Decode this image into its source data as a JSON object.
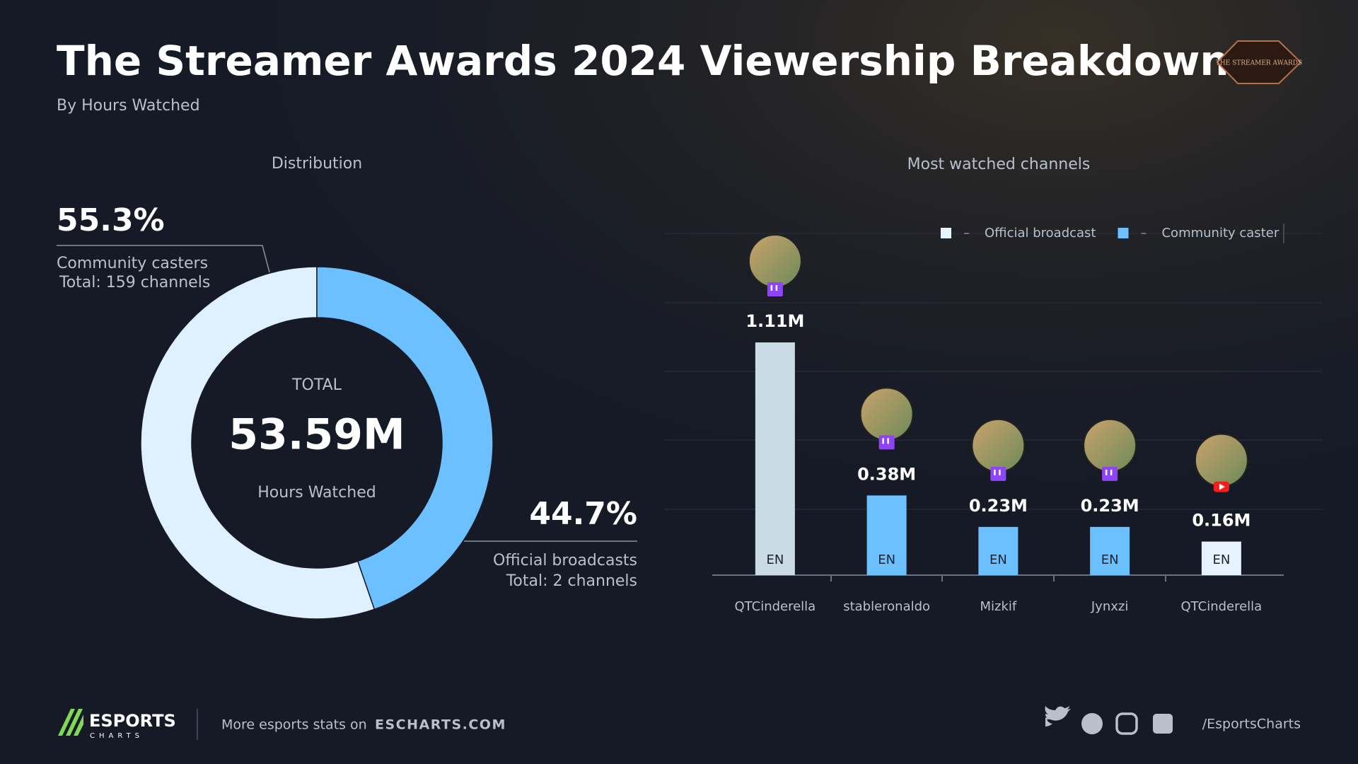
{
  "header": {
    "title": "The Streamer Awards 2024 Viewership Breakdown",
    "subtitle": "By Hours Watched",
    "logo": "THE STREAMER AWARDS"
  },
  "chart_data": [
    {
      "type": "donut",
      "title": "Distribution",
      "categories": [
        "Community casters",
        "Official broadcasts"
      ],
      "values": [
        55.3,
        44.7
      ],
      "value_labels": [
        "55.3%",
        "44.7%"
      ],
      "notes": [
        "Total: 159 channels",
        "Total: 2 channels"
      ],
      "colors": [
        "#dff0ff",
        "#6cc0ff"
      ],
      "total": {
        "label": "TOTAL",
        "value": 53.59,
        "value_label": "53.59M",
        "caption": "Hours Watched"
      }
    },
    {
      "type": "bar",
      "title": "Most watched channels",
      "categories": [
        "QTCinderella",
        "stableronaldo",
        "Mizkif",
        "Jynxzi",
        "QTCinderella"
      ],
      "values": [
        1.11,
        0.38,
        0.23,
        0.23,
        0.16
      ],
      "value_labels": [
        "1.11M",
        "0.38M",
        "0.23M",
        "0.23M",
        "0.16M"
      ],
      "colors": [
        "#cadbe6",
        "#6cc0ff",
        "#6cc0ff",
        "#6cc0ff",
        "#e6f3ff"
      ],
      "languages": [
        "EN",
        "EN",
        "EN",
        "EN",
        "EN"
      ],
      "platforms": [
        "twitch",
        "twitch",
        "twitch",
        "twitch",
        "youtube"
      ],
      "legend": [
        {
          "name": "Official broadcast",
          "color": "#e6f3ff"
        },
        {
          "name": "Community caster",
          "color": "#6cc0ff"
        }
      ],
      "ylim": [
        0,
        1.65
      ]
    }
  ],
  "footer": {
    "brand": "ESPORTS",
    "brand_sub": "CHARTS",
    "more": "More esports stats on",
    "site": "ESCHARTS.COM",
    "handle": "/EsportsCharts"
  }
}
